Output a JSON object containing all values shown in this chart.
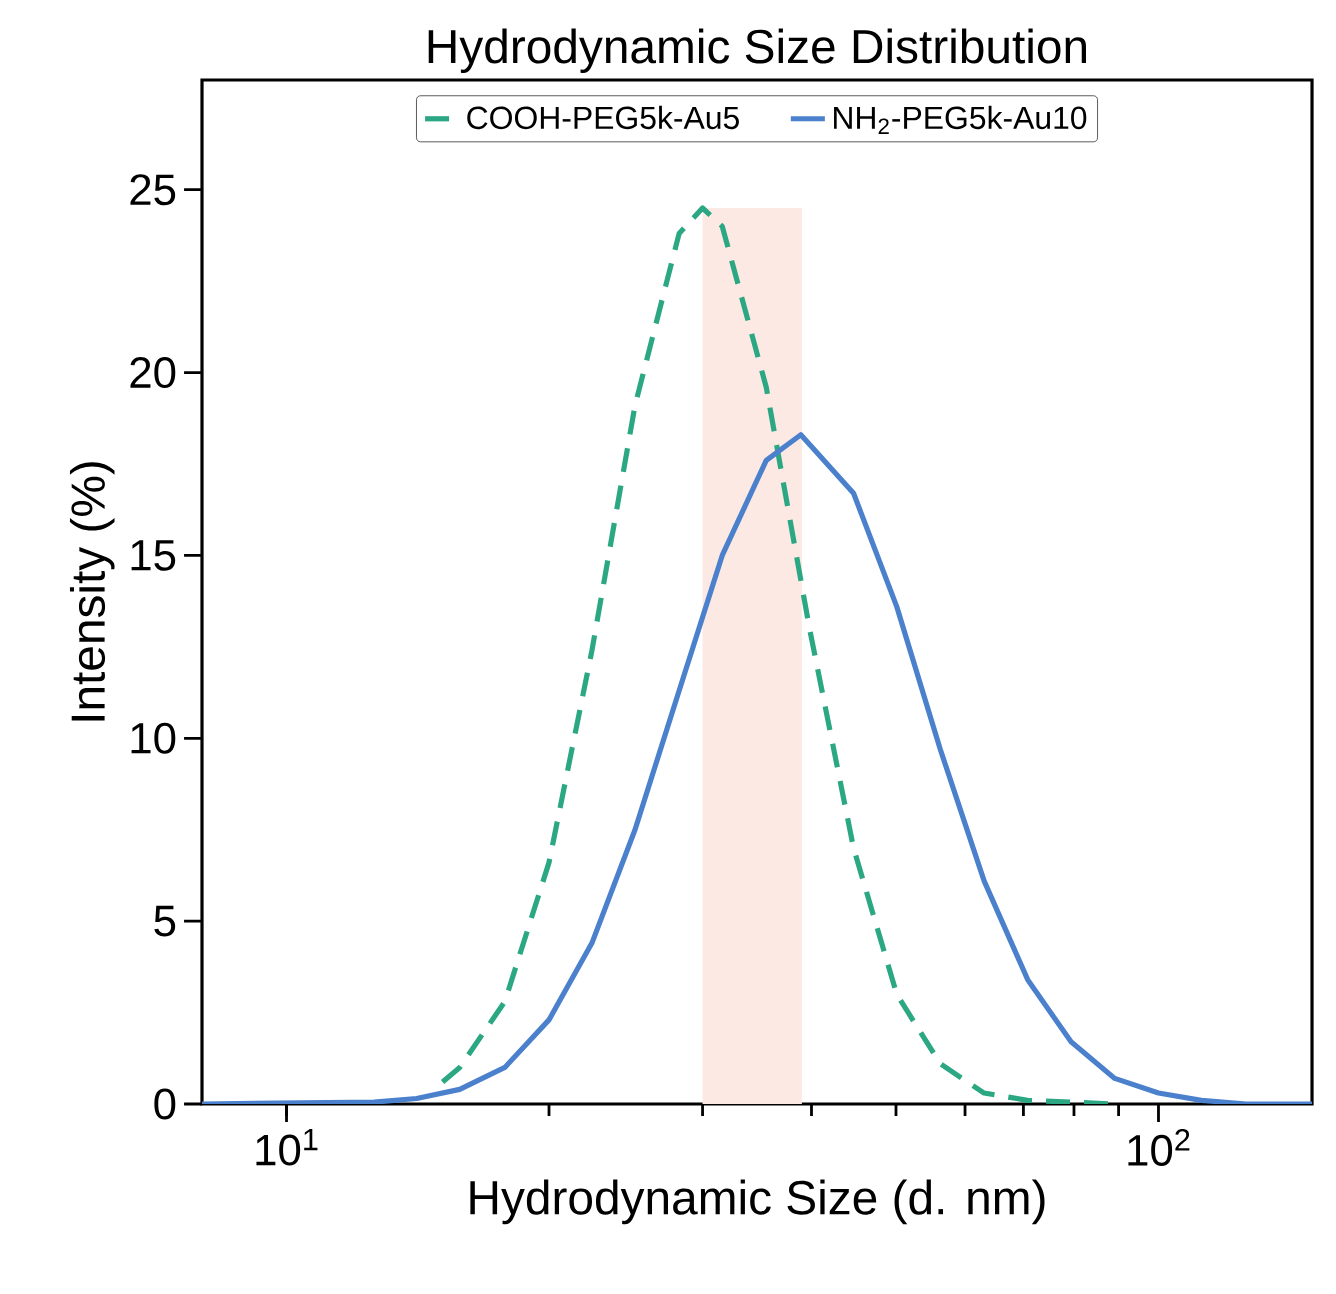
{
  "chart_data": {
    "type": "line",
    "title": "Hydrodynamic Size Distribution",
    "xlabel": "Hydrodynamic Size (d. nm)",
    "ylabel": "Intensity (%)",
    "log": "x",
    "xlim": [
      8,
      150
    ],
    "ylim": [
      0,
      28
    ],
    "xticks": [
      {
        "value": 10,
        "label": "10$^{1}$"
      },
      {
        "value": 100,
        "label": "10$^{2}$"
      }
    ],
    "yticks": [
      0,
      5,
      10,
      15,
      20,
      25
    ],
    "legend": "top",
    "grid": false,
    "bands": [
      {
        "axis": "x",
        "from": 30,
        "to": 39,
        "color": "#fde9e3"
      }
    ],
    "series": [
      {
        "name": "COOH-PEG5k-Au5",
        "color": "#2ba883",
        "line_style": "dashed",
        "x": [
          15.1,
          15.8,
          17.8,
          20,
          22.4,
          25.1,
          28.2,
          30,
          31.6,
          35.5,
          39.8,
          44.7,
          50.1,
          56.2,
          63.1,
          70.8,
          89.1
        ],
        "values": [
          0.6,
          1.0,
          2.8,
          6.6,
          12.4,
          19.1,
          23.8,
          24.5,
          24.0,
          19.6,
          13.0,
          7.0,
          3.0,
          1.1,
          0.3,
          0.1,
          0
        ]
      },
      {
        "name": "NH$_{2}$-PEG5k-Au10",
        "color": "#4a80cc",
        "line_style": "solid",
        "x": [
          8,
          12.6,
          14.1,
          15.8,
          17.8,
          20,
          22.4,
          25.1,
          28.2,
          31.6,
          35.5,
          38.9,
          44.7,
          50.1,
          56.2,
          63.1,
          70.8,
          79.4,
          89.1,
          100,
          112,
          126,
          150
        ],
        "values": [
          0,
          0.05,
          0.15,
          0.4,
          1.0,
          2.3,
          4.4,
          7.5,
          11.3,
          15.0,
          17.6,
          18.3,
          16.7,
          13.6,
          9.7,
          6.1,
          3.4,
          1.7,
          0.7,
          0.3,
          0.1,
          0,
          0
        ]
      }
    ]
  }
}
